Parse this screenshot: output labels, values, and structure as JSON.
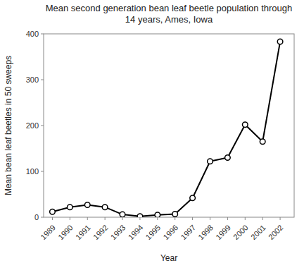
{
  "chart_data": {
    "type": "line",
    "title": "Mean second generation bean leaf beetle population through\n14 years, Ames, Iowa",
    "x_label": "Year",
    "y_label": "Mean bean leaf beetles in 50 sweeps",
    "x": [
      1989,
      1990,
      1991,
      1992,
      1993,
      1994,
      1995,
      1996,
      1997,
      1998,
      1999,
      2000,
      2001,
      2002
    ],
    "values": [
      12,
      22,
      27,
      22,
      6,
      2,
      5,
      7,
      42,
      122,
      130,
      202,
      165,
      383
    ],
    "color": "#000000",
    "marker": "circle",
    "xlim": [
      1988.5,
      2002.8
    ],
    "xticks": [
      1989,
      1990,
      1991,
      1992,
      1993,
      1994,
      1995,
      1996,
      1997,
      1998,
      1999,
      2000,
      2001,
      2002
    ],
    "ylim": [
      0,
      400
    ],
    "yticks": [
      0,
      100,
      200,
      300,
      400
    ],
    "grid": false
  }
}
